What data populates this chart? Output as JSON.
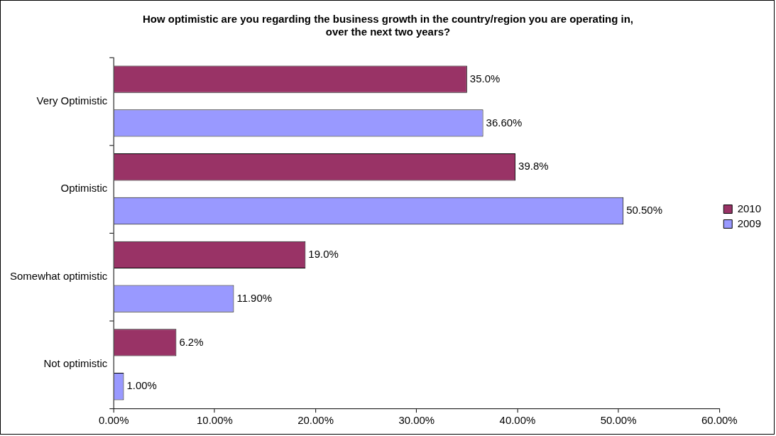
{
  "chart_data": {
    "type": "bar",
    "orientation": "horizontal",
    "title": "How optimistic are you regarding the business growth in the country/region you are operating in, over the next two years?",
    "categories": [
      "Very Optimistic",
      "Optimistic",
      "Somewhat optimistic",
      "Not optimistic"
    ],
    "series": [
      {
        "name": "2010",
        "color": "#993366",
        "values": [
          35.0,
          39.8,
          19.0,
          6.2
        ],
        "value_labels": [
          "35.0%",
          "39.8%",
          "19.0%",
          "6.2%"
        ]
      },
      {
        "name": "2009",
        "color": "#9999ff",
        "values": [
          36.6,
          50.5,
          11.9,
          1.0
        ],
        "value_labels": [
          "36.60%",
          "50.50%",
          "11.90%",
          "1.00%"
        ]
      }
    ],
    "xlim": [
      0,
      60
    ],
    "xticks": [
      {
        "value": 0,
        "label": "0.00%"
      },
      {
        "value": 10,
        "label": "10.00%"
      },
      {
        "value": 20,
        "label": "20.00%"
      },
      {
        "value": 30,
        "label": "30.00%"
      },
      {
        "value": 40,
        "label": "40.00%"
      },
      {
        "value": 50,
        "label": "50.00%"
      },
      {
        "value": 60,
        "label": "60.00%"
      }
    ],
    "grid": false,
    "legend": "right"
  }
}
